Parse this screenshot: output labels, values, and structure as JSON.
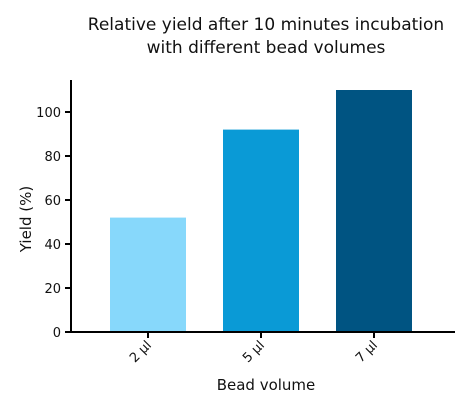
{
  "chart_data": {
    "type": "bar",
    "title_lines": [
      "Relative yield after 10 minutes incubation",
      "with different bead volumes"
    ],
    "xlabel": "Bead volume",
    "ylabel": "Yield (%)",
    "categories": [
      "2 µl",
      "5 µl",
      "7 µl"
    ],
    "values": [
      52,
      92,
      110
    ],
    "colors": [
      "#87d8fb",
      "#0a9ad6",
      "#005482"
    ],
    "ylim": [
      0,
      115
    ],
    "yticks": [
      0,
      20,
      40,
      60,
      80,
      100
    ],
    "grid": false,
    "legend": "none"
  }
}
